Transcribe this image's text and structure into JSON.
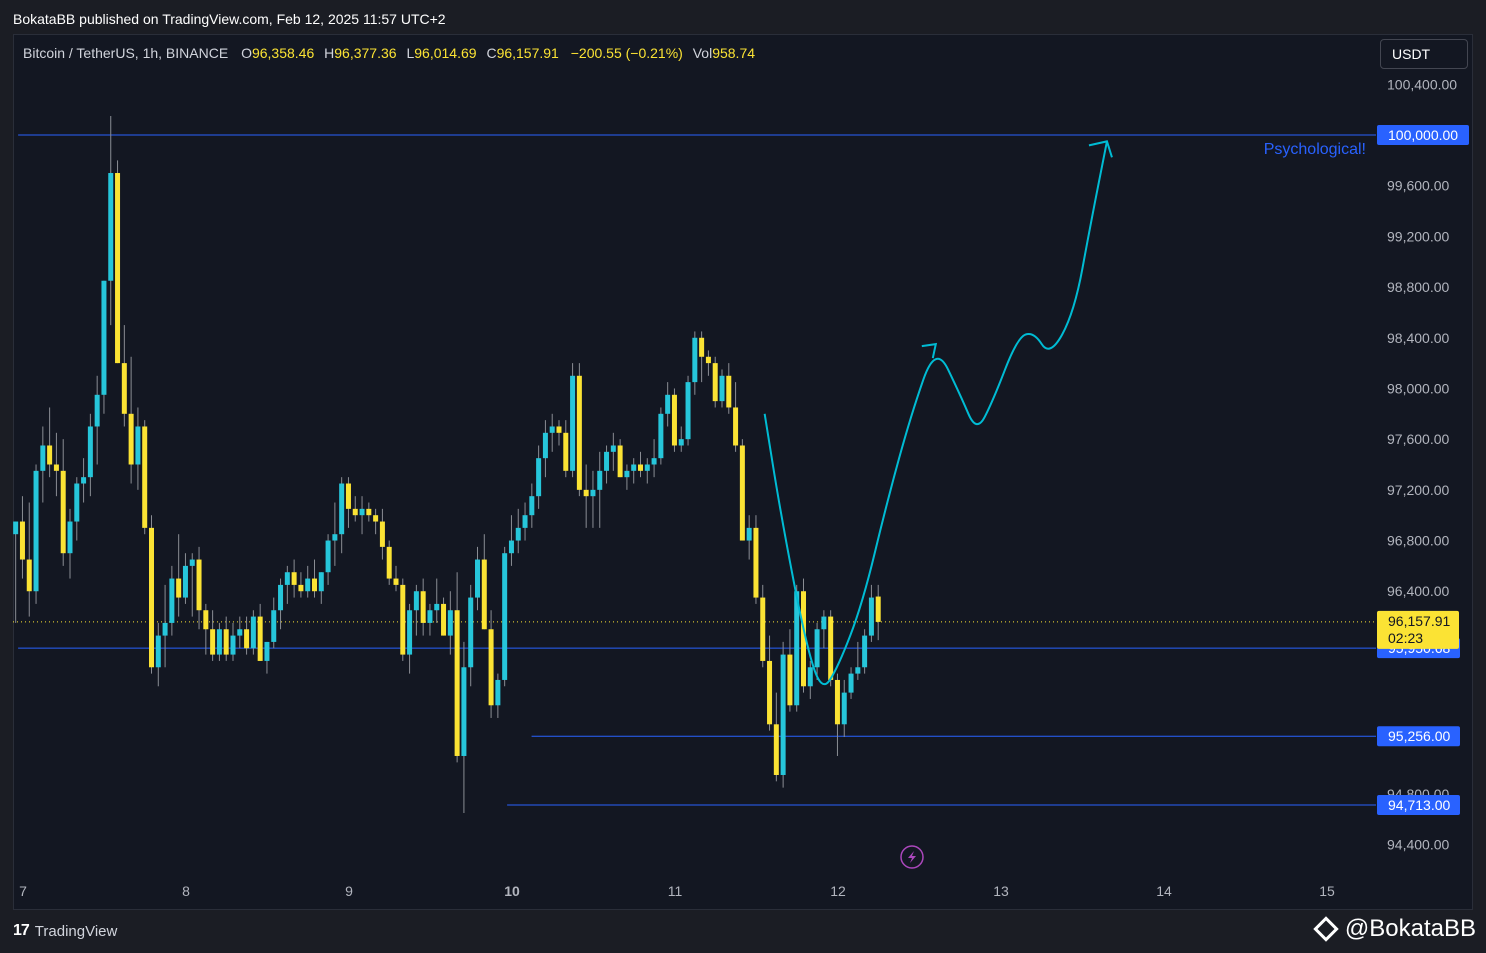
{
  "header": {
    "published_text": "BokataBB published on TradingView.com, Feb 12, 2025 11:57 UTC+2"
  },
  "legend": {
    "symbol": "Bitcoin / TetherUS, 1h, BINANCE",
    "open_label": "O",
    "open": "96,358.46",
    "high_label": "H",
    "high": "96,377.36",
    "low_label": "L",
    "low": "96,014.69",
    "close_label": "C",
    "close": "96,157.91",
    "change": "−200.55 (−0.21%)",
    "vol_label": "Vol",
    "vol": "958.74"
  },
  "currency_button": "USDT",
  "footer": {
    "brand_mark": "17",
    "brand": "TradingView",
    "watermark": "@BokataBB"
  },
  "colors": {
    "background": "#131722",
    "bull_candle": "#26c6da",
    "bear_candle": "#fbe334",
    "level_line": "#2962ff",
    "projection": "#00bcd4",
    "annotation": "#2962ff"
  },
  "chart_data": {
    "type": "candlestick",
    "title": "Bitcoin / TetherUS, 1h, BINANCE",
    "xlabel": "",
    "ylabel": "",
    "grid": false,
    "x_ticks": [
      {
        "label": "7",
        "day": 7,
        "bold": false
      },
      {
        "label": "8",
        "day": 8,
        "bold": false
      },
      {
        "label": "9",
        "day": 9,
        "bold": false
      },
      {
        "label": "10",
        "day": 10,
        "bold": true
      },
      {
        "label": "11",
        "day": 11,
        "bold": false
      },
      {
        "label": "12",
        "day": 12,
        "bold": false
      },
      {
        "label": "13",
        "day": 13,
        "bold": false
      },
      {
        "label": "14",
        "day": 14,
        "bold": false
      },
      {
        "label": "15",
        "day": 15,
        "bold": false
      }
    ],
    "y_ticks": [
      "100,400.00",
      "99,600.00",
      "99,200.00",
      "98,800.00",
      "98,400.00",
      "98,000.00",
      "97,600.00",
      "97,200.00",
      "96,800.00",
      "96,400.00",
      "94,800.00",
      "94,400.00"
    ],
    "y_tick_values": [
      100400,
      99600,
      99200,
      98800,
      98400,
      98000,
      97600,
      97200,
      96800,
      96400,
      94800,
      94400
    ],
    "ylim": [
      94100,
      100800
    ],
    "xlim": [
      6.97,
      15.25
    ],
    "levels": [
      {
        "value": 100000,
        "label": "100,000.00",
        "from_day": 6.97,
        "style": "solid"
      },
      {
        "value": 95950.68,
        "label": "95,950.68",
        "from_day": 6.97,
        "style": "solid"
      },
      {
        "value": 95256,
        "label": "95,256.00",
        "from_day": 10.12,
        "style": "solid"
      },
      {
        "value": 94713,
        "label": "94,713.00",
        "from_day": 9.97,
        "style": "solid"
      }
    ],
    "last_price": {
      "value": 96157.91,
      "label": "96,157.91",
      "countdown": "02:23"
    },
    "annotation": {
      "text": "Psychological!"
    },
    "projection_path": [
      {
        "day": 11.55,
        "price": 97800
      },
      {
        "day": 11.65,
        "price": 97000
      },
      {
        "day": 11.8,
        "price": 96000
      },
      {
        "day": 11.9,
        "price": 95600
      },
      {
        "day": 12.0,
        "price": 95800
      },
      {
        "day": 12.15,
        "price": 96300
      },
      {
        "day": 12.3,
        "price": 97100
      },
      {
        "day": 12.45,
        "price": 97800
      },
      {
        "day": 12.6,
        "price": 98350
      },
      {
        "day": 12.75,
        "price": 97950
      },
      {
        "day": 12.85,
        "price": 97650
      },
      {
        "day": 12.95,
        "price": 97900
      },
      {
        "day": 13.1,
        "price": 98400
      },
      {
        "day": 13.2,
        "price": 98450
      },
      {
        "day": 13.3,
        "price": 98250
      },
      {
        "day": 13.45,
        "price": 98600
      },
      {
        "day": 13.55,
        "price": 99300
      },
      {
        "day": 13.65,
        "price": 99950
      }
    ],
    "candles_note": "approximate hourly OHLC read from the chart",
    "candles": [
      {
        "o": 96850,
        "h": 96950,
        "l": 96150,
        "c": 96950
      },
      {
        "o": 96950,
        "h": 97150,
        "l": 96500,
        "c": 96650
      },
      {
        "o": 96650,
        "h": 97100,
        "l": 96200,
        "c": 96400
      },
      {
        "o": 96400,
        "h": 97400,
        "l": 96300,
        "c": 97350
      },
      {
        "o": 97350,
        "h": 97700,
        "l": 97100,
        "c": 97550
      },
      {
        "o": 97550,
        "h": 97850,
        "l": 97300,
        "c": 97400
      },
      {
        "o": 97400,
        "h": 97650,
        "l": 97150,
        "c": 97350
      },
      {
        "o": 97350,
        "h": 97600,
        "l": 96600,
        "c": 96700
      },
      {
        "o": 96700,
        "h": 97050,
        "l": 96500,
        "c": 96950
      },
      {
        "o": 96950,
        "h": 97300,
        "l": 96800,
        "c": 97250
      },
      {
        "o": 97250,
        "h": 97450,
        "l": 97100,
        "c": 97300
      },
      {
        "o": 97300,
        "h": 97800,
        "l": 97150,
        "c": 97700
      },
      {
        "o": 97700,
        "h": 98100,
        "l": 97400,
        "c": 97950
      },
      {
        "o": 97950,
        "h": 98850,
        "l": 97800,
        "c": 98850
      },
      {
        "o": 98850,
        "h": 100150,
        "l": 98500,
        "c": 99700
      },
      {
        "o": 99700,
        "h": 99800,
        "l": 98200,
        "c": 98200
      },
      {
        "o": 98200,
        "h": 98500,
        "l": 97700,
        "c": 97800
      },
      {
        "o": 97800,
        "h": 98250,
        "l": 97250,
        "c": 97400
      },
      {
        "o": 97400,
        "h": 97850,
        "l": 97200,
        "c": 97700
      },
      {
        "o": 97700,
        "h": 97750,
        "l": 96850,
        "c": 96900
      },
      {
        "o": 96900,
        "h": 97000,
        "l": 95750,
        "c": 95800
      },
      {
        "o": 95800,
        "h": 96150,
        "l": 95650,
        "c": 96050
      },
      {
        "o": 96050,
        "h": 96450,
        "l": 95800,
        "c": 96150
      },
      {
        "o": 96150,
        "h": 96600,
        "l": 96050,
        "c": 96500
      },
      {
        "o": 96500,
        "h": 96850,
        "l": 96200,
        "c": 96350
      },
      {
        "o": 96350,
        "h": 96700,
        "l": 96300,
        "c": 96600
      },
      {
        "o": 96600,
        "h": 96700,
        "l": 96200,
        "c": 96650
      },
      {
        "o": 96650,
        "h": 96750,
        "l": 96100,
        "c": 96250
      },
      {
        "o": 96250,
        "h": 96300,
        "l": 95900,
        "c": 96100
      },
      {
        "o": 96100,
        "h": 96250,
        "l": 95850,
        "c": 95900
      },
      {
        "o": 95900,
        "h": 96150,
        "l": 95850,
        "c": 96100
      },
      {
        "o": 96100,
        "h": 96200,
        "l": 95850,
        "c": 95900
      },
      {
        "o": 95900,
        "h": 96150,
        "l": 95850,
        "c": 96050
      },
      {
        "o": 96050,
        "h": 96200,
        "l": 95950,
        "c": 96100
      },
      {
        "o": 96100,
        "h": 96200,
        "l": 95900,
        "c": 95950
      },
      {
        "o": 95950,
        "h": 96250,
        "l": 95900,
        "c": 96200
      },
      {
        "o": 96200,
        "h": 96300,
        "l": 95850,
        "c": 95850
      },
      {
        "o": 95850,
        "h": 96000,
        "l": 95750,
        "c": 96000
      },
      {
        "o": 96000,
        "h": 96350,
        "l": 95950,
        "c": 96250
      },
      {
        "o": 96250,
        "h": 96500,
        "l": 96100,
        "c": 96450
      },
      {
        "o": 96450,
        "h": 96600,
        "l": 96300,
        "c": 96550
      },
      {
        "o": 96550,
        "h": 96650,
        "l": 96350,
        "c": 96450
      },
      {
        "o": 96450,
        "h": 96550,
        "l": 96350,
        "c": 96400
      },
      {
        "o": 96400,
        "h": 96600,
        "l": 96350,
        "c": 96500
      },
      {
        "o": 96500,
        "h": 96650,
        "l": 96350,
        "c": 96400
      },
      {
        "o": 96400,
        "h": 96550,
        "l": 96300,
        "c": 96550
      },
      {
        "o": 96550,
        "h": 96850,
        "l": 96450,
        "c": 96800
      },
      {
        "o": 96800,
        "h": 97100,
        "l": 96600,
        "c": 96850
      },
      {
        "o": 96850,
        "h": 97300,
        "l": 96700,
        "c": 97250
      },
      {
        "o": 97250,
        "h": 97300,
        "l": 96900,
        "c": 97050
      },
      {
        "o": 97050,
        "h": 97150,
        "l": 96950,
        "c": 97000
      },
      {
        "o": 97000,
        "h": 97150,
        "l": 96850,
        "c": 97050
      },
      {
        "o": 97050,
        "h": 97100,
        "l": 96950,
        "c": 97000
      },
      {
        "o": 97000,
        "h": 97050,
        "l": 96850,
        "c": 96950
      },
      {
        "o": 96950,
        "h": 97050,
        "l": 96650,
        "c": 96750
      },
      {
        "o": 96750,
        "h": 96800,
        "l": 96450,
        "c": 96500
      },
      {
        "o": 96500,
        "h": 96600,
        "l": 96400,
        "c": 96450
      },
      {
        "o": 96450,
        "h": 96500,
        "l": 95850,
        "c": 95900
      },
      {
        "o": 95900,
        "h": 96300,
        "l": 95750,
        "c": 96250
      },
      {
        "o": 96250,
        "h": 96450,
        "l": 96050,
        "c": 96400
      },
      {
        "o": 96400,
        "h": 96500,
        "l": 96050,
        "c": 96150
      },
      {
        "o": 96150,
        "h": 96300,
        "l": 96050,
        "c": 96250
      },
      {
        "o": 96250,
        "h": 96500,
        "l": 96150,
        "c": 96300
      },
      {
        "o": 96300,
        "h": 96350,
        "l": 96050,
        "c": 96050
      },
      {
        "o": 96050,
        "h": 96400,
        "l": 95900,
        "c": 96250
      },
      {
        "o": 96250,
        "h": 96550,
        "l": 95050,
        "c": 95100
      },
      {
        "o": 95100,
        "h": 96000,
        "l": 94650,
        "c": 95800
      },
      {
        "o": 95800,
        "h": 96450,
        "l": 95650,
        "c": 96350
      },
      {
        "o": 96350,
        "h": 96750,
        "l": 96250,
        "c": 96650
      },
      {
        "o": 96650,
        "h": 96850,
        "l": 96100,
        "c": 96100
      },
      {
        "o": 96100,
        "h": 96250,
        "l": 95400,
        "c": 95500
      },
      {
        "o": 95500,
        "h": 95750,
        "l": 95400,
        "c": 95700
      },
      {
        "o": 95700,
        "h": 96750,
        "l": 95650,
        "c": 96700
      },
      {
        "o": 96700,
        "h": 97000,
        "l": 96600,
        "c": 96800
      },
      {
        "o": 96800,
        "h": 97050,
        "l": 96700,
        "c": 96900
      },
      {
        "o": 96900,
        "h": 97100,
        "l": 96800,
        "c": 97000
      },
      {
        "o": 97000,
        "h": 97250,
        "l": 96900,
        "c": 97150
      },
      {
        "o": 97150,
        "h": 97550,
        "l": 97050,
        "c": 97450
      },
      {
        "o": 97450,
        "h": 97750,
        "l": 97300,
        "c": 97650
      },
      {
        "o": 97650,
        "h": 97800,
        "l": 97500,
        "c": 97700
      },
      {
        "o": 97700,
        "h": 97750,
        "l": 97550,
        "c": 97650
      },
      {
        "o": 97650,
        "h": 97750,
        "l": 97300,
        "c": 97350
      },
      {
        "o": 97350,
        "h": 98200,
        "l": 97300,
        "c": 98100
      },
      {
        "o": 98100,
        "h": 98200,
        "l": 97150,
        "c": 97200
      },
      {
        "o": 97200,
        "h": 97400,
        "l": 96900,
        "c": 97150
      },
      {
        "o": 97150,
        "h": 97350,
        "l": 96900,
        "c": 97200
      },
      {
        "o": 97200,
        "h": 97500,
        "l": 96900,
        "c": 97350
      },
      {
        "o": 97350,
        "h": 97550,
        "l": 97250,
        "c": 97500
      },
      {
        "o": 97500,
        "h": 97650,
        "l": 97350,
        "c": 97550
      },
      {
        "o": 97550,
        "h": 97600,
        "l": 97300,
        "c": 97300
      },
      {
        "o": 97300,
        "h": 97400,
        "l": 97200,
        "c": 97350
      },
      {
        "o": 97350,
        "h": 97450,
        "l": 97250,
        "c": 97400
      },
      {
        "o": 97400,
        "h": 97500,
        "l": 97300,
        "c": 97350
      },
      {
        "o": 97350,
        "h": 97450,
        "l": 97250,
        "c": 97400
      },
      {
        "o": 97400,
        "h": 97600,
        "l": 97300,
        "c": 97450
      },
      {
        "o": 97450,
        "h": 97850,
        "l": 97400,
        "c": 97800
      },
      {
        "o": 97800,
        "h": 98050,
        "l": 97700,
        "c": 97950
      },
      {
        "o": 97950,
        "h": 98000,
        "l": 97500,
        "c": 97550
      },
      {
        "o": 97550,
        "h": 97700,
        "l": 97500,
        "c": 97600
      },
      {
        "o": 97600,
        "h": 98100,
        "l": 97550,
        "c": 98050
      },
      {
        "o": 98050,
        "h": 98450,
        "l": 97950,
        "c": 98400
      },
      {
        "o": 98400,
        "h": 98450,
        "l": 98050,
        "c": 98250
      },
      {
        "o": 98250,
        "h": 98300,
        "l": 98100,
        "c": 98200
      },
      {
        "o": 98200,
        "h": 98250,
        "l": 97850,
        "c": 97900
      },
      {
        "o": 97900,
        "h": 98150,
        "l": 97850,
        "c": 98100
      },
      {
        "o": 98100,
        "h": 98200,
        "l": 97800,
        "c": 97850
      },
      {
        "o": 97850,
        "h": 98050,
        "l": 97500,
        "c": 97550
      },
      {
        "o": 97550,
        "h": 97600,
        "l": 96800,
        "c": 96800
      },
      {
        "o": 96800,
        "h": 97000,
        "l": 96650,
        "c": 96900
      },
      {
        "o": 96900,
        "h": 97000,
        "l": 96300,
        "c": 96350
      },
      {
        "o": 96350,
        "h": 96450,
        "l": 95800,
        "c": 95850
      },
      {
        "o": 95850,
        "h": 96050,
        "l": 95300,
        "c": 95350
      },
      {
        "o": 95350,
        "h": 95600,
        "l": 94900,
        "c": 94950
      },
      {
        "o": 94950,
        "h": 96000,
        "l": 94850,
        "c": 95900
      },
      {
        "o": 95900,
        "h": 96100,
        "l": 95450,
        "c": 95500
      },
      {
        "o": 95500,
        "h": 96450,
        "l": 95450,
        "c": 96400
      },
      {
        "o": 96400,
        "h": 96500,
        "l": 95600,
        "c": 95650
      },
      {
        "o": 95650,
        "h": 95850,
        "l": 95550,
        "c": 95800
      },
      {
        "o": 95800,
        "h": 96150,
        "l": 95700,
        "c": 96100
      },
      {
        "o": 96100,
        "h": 96250,
        "l": 95950,
        "c": 96200
      },
      {
        "o": 96200,
        "h": 96250,
        "l": 95650,
        "c": 95700
      },
      {
        "o": 95700,
        "h": 95750,
        "l": 95100,
        "c": 95350
      },
      {
        "o": 95350,
        "h": 95700,
        "l": 95250,
        "c": 95600
      },
      {
        "o": 95600,
        "h": 95800,
        "l": 95550,
        "c": 95750
      },
      {
        "o": 95750,
        "h": 96000,
        "l": 95700,
        "c": 95800
      },
      {
        "o": 95800,
        "h": 96100,
        "l": 95750,
        "c": 96050
      },
      {
        "o": 96050,
        "h": 96450,
        "l": 96000,
        "c": 96350
      },
      {
        "o": 96358,
        "h": 96450,
        "l": 96014,
        "c": 96158
      }
    ]
  }
}
